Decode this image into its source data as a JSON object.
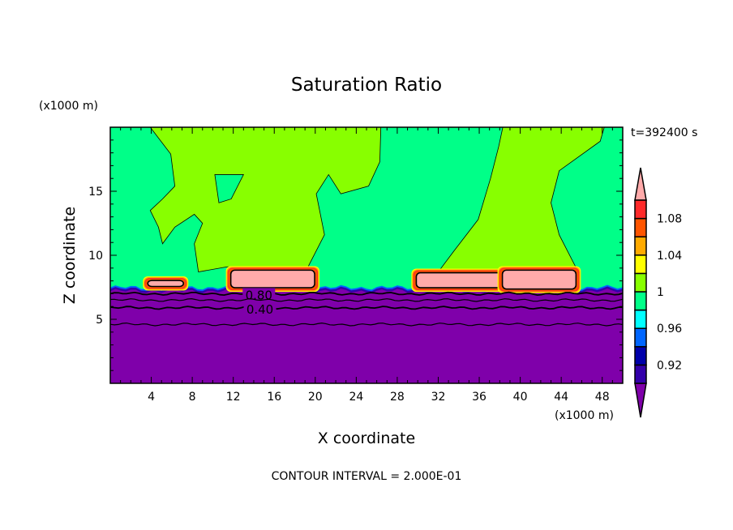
{
  "chart_data": {
    "type": "heatmap",
    "subtype": "filled-contour",
    "title": "Saturation Ratio",
    "xlabel": "X coordinate",
    "ylabel": "Z coordinate",
    "x_unit_label": "(x1000 m)",
    "y_unit_label": "(x1000 m)",
    "time_label": "t=392400 s",
    "footer": "CONTOUR INTERVAL = 2.000E-01",
    "xlim": [
      0,
      50
    ],
    "ylim": [
      0,
      20
    ],
    "x_ticks": [
      "4",
      "8",
      "12",
      "16",
      "20",
      "24",
      "28",
      "32",
      "36",
      "40",
      "44",
      "48"
    ],
    "y_ticks": [
      "5",
      "10",
      "15"
    ],
    "colorbar": {
      "levels": [
        0.9,
        0.92,
        0.94,
        0.96,
        0.98,
        1.0,
        1.02,
        1.04,
        1.06,
        1.08,
        1.1
      ],
      "colors": [
        "#3300aa",
        "#0000aa",
        "#0066ff",
        "#00ffff",
        "#00ff88",
        "#88ff00",
        "#ffff00",
        "#ffaa00",
        "#ff5500",
        "#ff2a2a"
      ],
      "under_color": "#7f00aa",
      "over_color": "#ffaaaa",
      "labels": [
        {
          "value": 0.92,
          "text": "0.92"
        },
        {
          "value": 0.96,
          "text": "0.96"
        },
        {
          "value": 1.0,
          "text": "1"
        },
        {
          "value": 1.04,
          "text": "1.04"
        },
        {
          "value": 1.08,
          "text": "1.08"
        }
      ]
    },
    "background_color": "#00ff88",
    "regions": [
      {
        "name": "supersaturated-region-left",
        "color": "#88ff00",
        "points": [
          [
            3.9,
            20
          ],
          [
            26.4,
            20
          ],
          [
            26.3,
            17.3
          ],
          [
            25.2,
            15.4
          ],
          [
            22.5,
            14.8
          ],
          [
            21.3,
            16.3
          ],
          [
            20.1,
            14.8
          ],
          [
            20.9,
            11.6
          ],
          [
            19.3,
            9.1
          ],
          [
            11.4,
            9.1
          ],
          [
            8.6,
            8.7
          ],
          [
            8.2,
            10.9
          ],
          [
            9.0,
            12.5
          ],
          [
            8.2,
            13.2
          ],
          [
            6.3,
            12.2
          ],
          [
            5.1,
            10.9
          ],
          [
            4.7,
            12.2
          ],
          [
            3.9,
            13.5
          ],
          [
            5.1,
            14.4
          ],
          [
            6.3,
            15.4
          ],
          [
            5.9,
            17.9
          ]
        ]
      },
      {
        "name": "subsaturated-hole",
        "color": "#00ff88",
        "points": [
          [
            10.2,
            16.3
          ],
          [
            13.0,
            16.3
          ],
          [
            11.8,
            14.4
          ],
          [
            10.6,
            14.1
          ]
        ]
      },
      {
        "name": "supersaturated-region-right",
        "color": "#88ff00",
        "points": [
          [
            38.3,
            20
          ],
          [
            48.2,
            20
          ],
          [
            47.8,
            18.9
          ],
          [
            43.8,
            16.6
          ],
          [
            43.0,
            14.1
          ],
          [
            43.8,
            11.6
          ],
          [
            45.4,
            9.1
          ],
          [
            32.0,
            8.7
          ],
          [
            33.5,
            10.3
          ],
          [
            35.9,
            12.8
          ],
          [
            37.1,
            16.0
          ],
          [
            37.9,
            18.5
          ]
        ]
      }
    ],
    "cloud_blobs": [
      {
        "name": "cloud-12-20",
        "x": [
          11.6,
          20.1
        ],
        "y": [
          7.4,
          8.9
        ]
      },
      {
        "name": "cloud-30-38",
        "x": [
          29.7,
          38.5
        ],
        "y": [
          7.4,
          8.7
        ]
      },
      {
        "name": "cloud-38-46",
        "x": [
          38.1,
          45.6
        ],
        "y": [
          7.3,
          8.9
        ]
      },
      {
        "name": "cloud-4-7",
        "x": [
          3.5,
          7.3
        ],
        "y": [
          7.5,
          8.1
        ]
      }
    ],
    "dry_layer_top": 7.3,
    "contour_lines": [
      {
        "level": 0.8,
        "y": 7.0,
        "label": "0.80",
        "label_x": 14.5
      },
      {
        "level": 0.6,
        "y": 6.5,
        "label": ""
      },
      {
        "level": 0.4,
        "y": 5.9,
        "label": "0.40",
        "label_x": 14.6
      },
      {
        "level": 0.2,
        "y": 4.6,
        "label": ""
      }
    ]
  }
}
